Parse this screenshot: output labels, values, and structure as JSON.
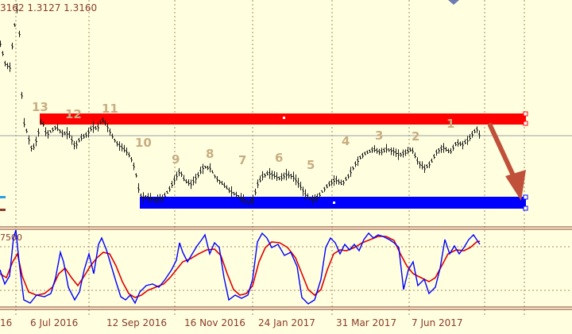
{
  "header": {
    "price_readout": "3162 1.3127 1.3160"
  },
  "indicator": {
    "partial_label": "7500"
  },
  "colors": {
    "background": "#ffffe0",
    "price_bars": "#1a1a1a",
    "resistance_zone": "#ff0000",
    "support_zone": "#0000ff",
    "arrow": "#c0503a",
    "wave_labels": "#c8ad82",
    "stoch_main": "#0000ff",
    "stoch_signal": "#dd0000",
    "indicator_border": "#8b3a2a",
    "grid": "#a08860"
  },
  "wave_labels": [
    "13",
    "12",
    "11",
    "10",
    "9",
    "8",
    "7",
    "6",
    "5",
    "4",
    "3",
    "2",
    "1"
  ],
  "x_axis": {
    "labels": [
      "16",
      "6 Jul 2016",
      "12 Sep 2016",
      "16 Nov 2016",
      "24 Jan 2017",
      "31 Mar 2017",
      "7 Jun 2017"
    ]
  }
}
